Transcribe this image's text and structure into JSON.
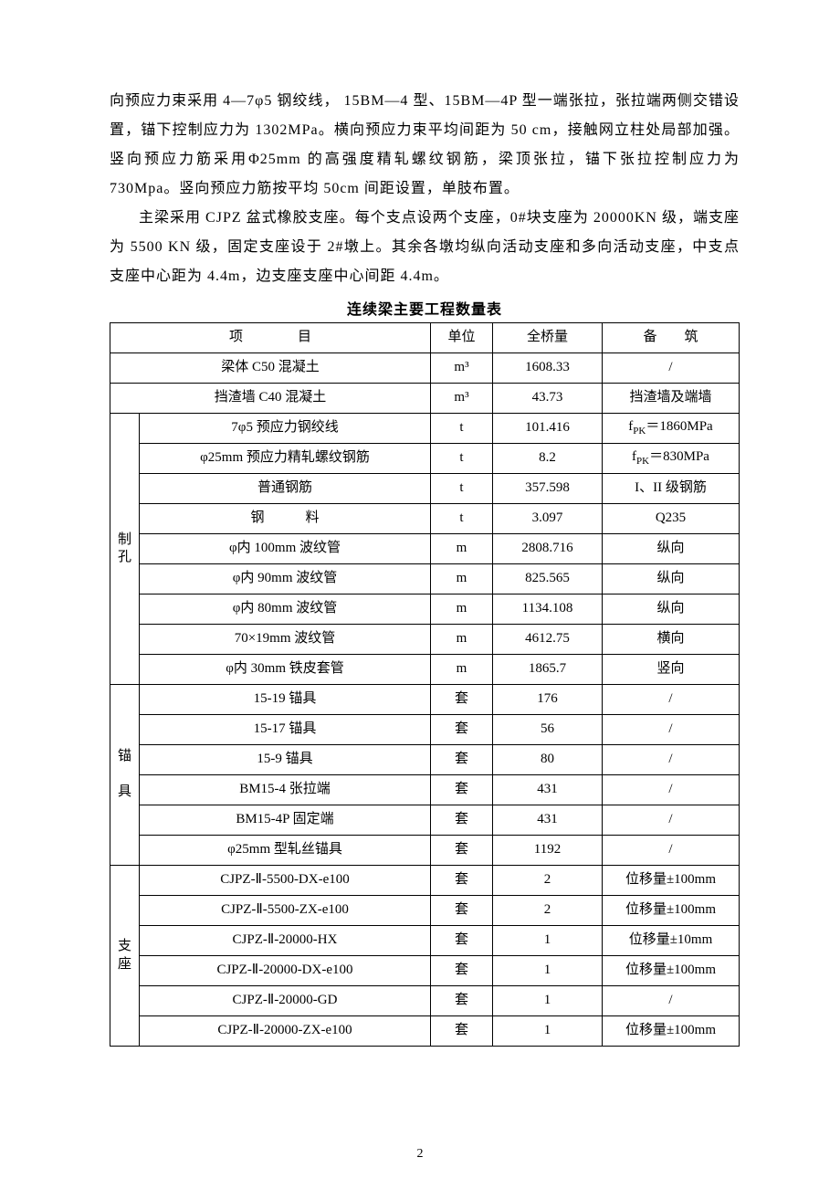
{
  "paragraphs": {
    "p1": "向预应力束采用 4—7φ5 钢绞线， 15BM—4 型、15BM—4P 型一端张拉，张拉端两侧交错设置，锚下控制应力为 1302MPa。横向预应力束平均间距为 50 cm，接触网立柱处局部加强。竖向预应力筋采用Φ25mm 的高强度精轧螺纹钢筋，梁顶张拉，锚下张拉控制应力为 730Mpa。竖向预应力筋按平均 50cm 间距设置，单肢布置。",
    "p2": "主梁采用 CJPZ 盆式橡胶支座。每个支点设两个支座，0#块支座为 20000KN 级，端支座为 5500 KN 级，固定支座设于 2#墩上。其余各墩均纵向活动支座和多向活动支座，中支点支座中心距为 4.4m，边支座支座中心间距 4.4m。"
  },
  "table": {
    "title": "连续梁主要工程数量表",
    "headers": {
      "item": "项　　　　目",
      "unit": "单位",
      "qty": "全桥量",
      "note": "备　　筑"
    },
    "top_rows": [
      {
        "item": "梁体 C50 混凝土",
        "unit": "m³",
        "qty": "1608.33",
        "note": "/"
      },
      {
        "item": "挡渣墙 C40 混凝土",
        "unit": "m³",
        "qty": "43.73",
        "note": "挡渣墙及端墙"
      }
    ],
    "steel_rows": [
      {
        "item": "7φ5 预应力钢绞线",
        "unit": "t",
        "qty": "101.416",
        "note": "f_PK＝1860MPa"
      },
      {
        "item": "φ25mm 预应力精轧螺纹钢筋",
        "unit": "t",
        "qty": "8.2",
        "note": "f_PK＝830MPa"
      },
      {
        "item": "普通钢筋",
        "unit": "t",
        "qty": "357.598",
        "note": "I、II 级钢筋"
      },
      {
        "item": "钢　　　料",
        "unit": "t",
        "qty": "3.097",
        "note": "Q235"
      }
    ],
    "groups": [
      {
        "label_chars": [
          "制",
          "孔"
        ],
        "rows": [
          {
            "item": "φ内 100mm 波纹管",
            "unit": "m",
            "qty": "2808.716",
            "note": "纵向"
          },
          {
            "item": "φ内 90mm 波纹管",
            "unit": "m",
            "qty": "825.565",
            "note": "纵向"
          },
          {
            "item": "φ内 80mm 波纹管",
            "unit": "m",
            "qty": "1134.108",
            "note": "纵向"
          },
          {
            "item": "70×19mm 波纹管",
            "unit": "m",
            "qty": "4612.75",
            "note": "横向"
          },
          {
            "item": "φ内 30mm 铁皮套管",
            "unit": "m",
            "qty": "1865.7",
            "note": "竖向"
          }
        ]
      },
      {
        "label_chars": [
          "锚",
          "",
          "具"
        ],
        "rows": [
          {
            "item": "15-19 锚具",
            "unit": "套",
            "qty": "176",
            "note": "/"
          },
          {
            "item": "15-17 锚具",
            "unit": "套",
            "qty": "56",
            "note": "/"
          },
          {
            "item": "15-9 锚具",
            "unit": "套",
            "qty": "80",
            "note": "/"
          },
          {
            "item": "BM15-4 张拉端",
            "unit": "套",
            "qty": "431",
            "note": "/"
          },
          {
            "item": "BM15-4P 固定端",
            "unit": "套",
            "qty": "431",
            "note": "/"
          },
          {
            "item": "φ25mm 型轧丝锚具",
            "unit": "套",
            "qty": "1192",
            "note": "/"
          }
        ]
      },
      {
        "label_chars": [
          "支",
          "座"
        ],
        "rows": [
          {
            "item": "CJPZ-Ⅱ-5500-DX-e100",
            "unit": "套",
            "qty": "2",
            "note": "位移量±100mm"
          },
          {
            "item": "CJPZ-Ⅱ-5500-ZX-e100",
            "unit": "套",
            "qty": "2",
            "note": "位移量±100mm"
          },
          {
            "item": "CJPZ-Ⅱ-20000-HX",
            "unit": "套",
            "qty": "1",
            "note": "位移量±10mm"
          },
          {
            "item": "CJPZ-Ⅱ-20000-DX-e100",
            "unit": "套",
            "qty": "1",
            "note": "位移量±100mm"
          },
          {
            "item": "CJPZ-Ⅱ-20000-GD",
            "unit": "套",
            "qty": "1",
            "note": "/"
          },
          {
            "item": "CJPZ-Ⅱ-20000-ZX-e100",
            "unit": "套",
            "qty": "1",
            "note": "位移量±100mm"
          }
        ]
      }
    ]
  },
  "page_number": "2",
  "styles": {
    "text_color": "#000000",
    "border_color": "#000000",
    "background": "#ffffff",
    "body_font_size_pt": 12,
    "title_font_size_pt": 12,
    "table_font_size_pt": 11
  }
}
